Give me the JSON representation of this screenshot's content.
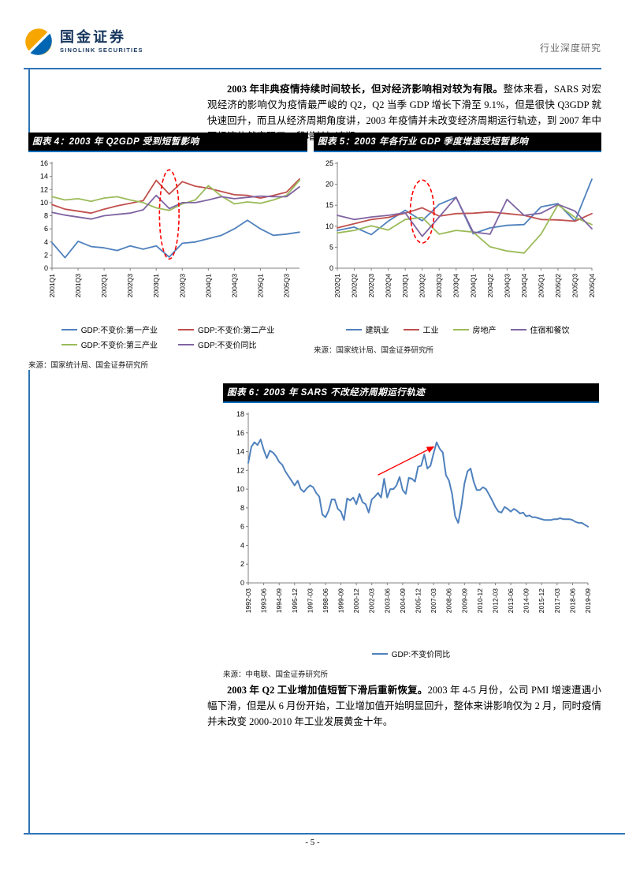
{
  "page": {
    "brand": {
      "name": "国金证券",
      "subtitle": "SINOLINK SECURITIES"
    },
    "header_right": "行业深度研究",
    "page_number": "- 5 -",
    "accent_blue": "#2E74B5",
    "title_bar_blue": "#0070C0",
    "logo_orange": "#F7A600",
    "logo_blue": "#0066B3"
  },
  "paragraph1": {
    "bold": "2003 年非典疫情持续时间较长，但对经济影响相对较为有限。",
    "text": "整体来看，SARS 对宏观经济的影响仅为疫情最严峻的 Q2，Q2 当季 GDP 增长下滑至 9.1%，但是很快 Q3GDP 就快速回升，而且从经济周期角度讲，2003 年疫情并未改变经济周期运行轨迹，到 2007 年中国经济依然实现了一段增长加速期。"
  },
  "paragraph2": {
    "bold": "2003 年 Q2 工业增加值短暂下滑后重新恢复。",
    "text": "2003 年 4-5 月份，公司 PMI 增速遭遇小幅下滑，但是从 6 月份开始，工业增加值开始明显回升，整体来讲影响仅为 2 月，同时疫情并未改变 2000-2010 年工业发展黄金十年。"
  },
  "chart_data": [
    {
      "id": "figure-4",
      "type": "line",
      "title": "图表 4：2003 年 Q2GDP 受到短暂影响",
      "source": "来源：国家统计局、国金证券研究所",
      "ylim": [
        0,
        16
      ],
      "ytick": 2,
      "grid": false,
      "legend_position": "bottom",
      "categories": [
        "2001Q1",
        "2001Q2",
        "2001Q3",
        "2001Q4",
        "2002Q1",
        "2002Q2",
        "2002Q3",
        "2002Q4",
        "2003Q1",
        "2003Q2",
        "2003Q3",
        "2003Q4",
        "2004Q1",
        "2004Q2",
        "2004Q3",
        "2004Q4",
        "2005Q1",
        "2005Q2",
        "2005Q3",
        "2005Q4"
      ],
      "series": [
        {
          "name": "GDP:不变价:第一产业",
          "color": "#4F81BD",
          "values": [
            3.9,
            1.6,
            4.1,
            3.3,
            3.1,
            2.7,
            3.4,
            2.9,
            3.4,
            1.7,
            3.8,
            4.0,
            4.5,
            5.0,
            6.0,
            7.3,
            6.0,
            5.0,
            5.2,
            5.5
          ]
        },
        {
          "name": "GDP:不变价:第二产业",
          "color": "#C0504D",
          "values": [
            9.7,
            9.0,
            8.7,
            8.4,
            9.0,
            9.5,
            9.9,
            10.3,
            13.4,
            11.3,
            13.2,
            12.5,
            12.2,
            11.7,
            11.2,
            11.1,
            10.7,
            11.1,
            11.6,
            13.6
          ]
        },
        {
          "name": "GDP:不变价:第三产业",
          "color": "#9BBB59",
          "values": [
            10.9,
            10.4,
            10.6,
            10.2,
            10.7,
            10.9,
            10.4,
            10.0,
            9.2,
            8.8,
            9.8,
            10.4,
            12.6,
            11.0,
            9.8,
            10.1,
            9.9,
            10.4,
            11.1,
            13.4
          ]
        },
        {
          "name": "GDP:不变价同比",
          "color": "#8064A2",
          "values": [
            8.5,
            8.1,
            7.8,
            7.5,
            8.0,
            8.2,
            8.4,
            8.9,
            11.1,
            9.1,
            10.0,
            10.0,
            10.4,
            10.9,
            10.6,
            10.8,
            11.0,
            10.9,
            10.9,
            12.4
          ]
        }
      ],
      "annotation": {
        "type": "ellipse",
        "x_index": 9,
        "y_center": 8.2,
        "rx_index": 0.75,
        "ry_value": 6.8,
        "color": "#FF0000"
      }
    },
    {
      "id": "figure-5",
      "type": "line",
      "title": "图表 5：2003 年各行业 GDP 季度增速受短暂影响",
      "source": "来源：国家统计局、国金证券研究所",
      "ylim": [
        0,
        25
      ],
      "ytick": 5,
      "grid": false,
      "legend_position": "bottom",
      "categories": [
        "2002Q1",
        "2002Q2",
        "2002Q3",
        "2002Q4",
        "2003Q1",
        "2003Q2",
        "2003Q3",
        "2003Q4",
        "2004Q1",
        "2004Q2",
        "2004Q3",
        "2004Q4",
        "2005Q1",
        "2005Q2",
        "2005Q3",
        "2005Q4"
      ],
      "series": [
        {
          "name": "建筑业",
          "color": "#4F81BD",
          "values": [
            9.0,
            9.8,
            8.0,
            11.2,
            13.8,
            11.3,
            15.2,
            16.9,
            8.2,
            9.6,
            10.2,
            10.4,
            14.6,
            15.4,
            11.2,
            21.2
          ]
        },
        {
          "name": "工业",
          "color": "#C0504D",
          "values": [
            9.6,
            10.6,
            11.6,
            12.1,
            13.1,
            14.4,
            12.4,
            13.0,
            13.1,
            13.4,
            13.0,
            12.6,
            11.6,
            11.5,
            11.2,
            13.0
          ]
        },
        {
          "name": "房地产",
          "color": "#9BBB59",
          "values": [
            8.4,
            9.0,
            10.1,
            9.1,
            11.6,
            12.1,
            8.1,
            9.0,
            8.6,
            5.1,
            4.1,
            3.6,
            8.1,
            15.1,
            12.1,
            10.4
          ]
        },
        {
          "name": "住宿和餐饮",
          "color": "#8064A2",
          "values": [
            12.6,
            11.6,
            12.2,
            12.6,
            13.2,
            7.6,
            12.2,
            16.9,
            8.6,
            8.1,
            16.4,
            12.6,
            13.1,
            15.2,
            13.6,
            9.4
          ]
        }
      ],
      "annotation": {
        "type": "ellipse",
        "x_index": 5,
        "y_center": 13.5,
        "rx_index": 0.7,
        "ry_value": 7.5,
        "color": "#FF0000"
      }
    },
    {
      "id": "figure-6",
      "type": "line",
      "title": "图表 6：2003 年 SARS 不改经济周期运行轨迹",
      "source": "来源：中电联、国金证券研究所",
      "ylim": [
        0,
        18
      ],
      "ytick": 2,
      "grid": false,
      "legend_position": "bottom",
      "categories": [
        "1992-03",
        "1992-06",
        "1992-09",
        "1992-12",
        "1993-03",
        "1993-06",
        "1993-09",
        "1993-12",
        "1994-03",
        "1994-06",
        "1994-09",
        "1994-12",
        "1995-03",
        "1995-06",
        "1995-09",
        "1995-12",
        "1996-03",
        "1996-06",
        "1996-09",
        "1996-12",
        "1997-03",
        "1997-06",
        "1997-09",
        "1997-12",
        "1998-03",
        "1998-06",
        "1998-09",
        "1998-12",
        "1999-03",
        "1999-06",
        "1999-09",
        "1999-12",
        "2000-03",
        "2000-06",
        "2000-09",
        "2000-12",
        "2001-03",
        "2001-06",
        "2001-09",
        "2001-12",
        "2002-03",
        "2002-06",
        "2002-09",
        "2002-12",
        "2003-03",
        "2003-06",
        "2003-09",
        "2003-12",
        "2004-03",
        "2004-06",
        "2004-09",
        "2004-12",
        "2005-03",
        "2005-06",
        "2005-09",
        "2005-12",
        "2006-03",
        "2006-06",
        "2006-09",
        "2006-12",
        "2007-03",
        "2007-06",
        "2007-09",
        "2007-12",
        "2008-03",
        "2008-06",
        "2008-09",
        "2008-12",
        "2009-03",
        "2009-06",
        "2009-09",
        "2009-12",
        "2010-03",
        "2010-06",
        "2010-09",
        "2010-12",
        "2011-03",
        "2011-06",
        "2011-09",
        "2011-12",
        "2012-03",
        "2012-06",
        "2012-09",
        "2012-12",
        "2013-03",
        "2013-06",
        "2013-09",
        "2013-12",
        "2014-03",
        "2014-06",
        "2014-09",
        "2014-12",
        "2015-03",
        "2015-06",
        "2015-09",
        "2015-12",
        "2016-03",
        "2016-06",
        "2016-09",
        "2016-12",
        "2017-03",
        "2017-06",
        "2017-09",
        "2017-12",
        "2018-03",
        "2018-06",
        "2018-09",
        "2018-12",
        "2019-03",
        "2019-06",
        "2019-09"
      ],
      "series": [
        {
          "name": "GDP:不变价同比",
          "color": "#4F81BD",
          "values": [
            12.8,
            14.5,
            15.0,
            14.7,
            15.3,
            14.2,
            13.3,
            14.1,
            13.9,
            13.5,
            12.9,
            12.6,
            11.9,
            11.4,
            10.9,
            10.4,
            10.9,
            10.0,
            9.7,
            10.1,
            10.4,
            10.2,
            9.6,
            9.2,
            7.3,
            7.0,
            7.7,
            8.9,
            8.9,
            7.9,
            7.6,
            6.7,
            9.0,
            8.8,
            9.1,
            8.4,
            9.5,
            8.6,
            8.4,
            7.5,
            8.9,
            9.2,
            9.6,
            9.1,
            11.1,
            9.1,
            10.0,
            10.0,
            10.4,
            11.3,
            9.9,
            9.5,
            11.2,
            11.1,
            10.8,
            12.4,
            12.5,
            13.7,
            12.2,
            12.5,
            13.8,
            15.0,
            14.3,
            13.9,
            11.5,
            10.9,
            9.5,
            7.1,
            6.4,
            8.2,
            10.6,
            11.9,
            12.2,
            10.8,
            9.9,
            9.9,
            10.2,
            10.0,
            9.4,
            8.8,
            8.1,
            7.6,
            7.5,
            8.1,
            7.9,
            7.6,
            7.9,
            7.7,
            7.4,
            7.5,
            7.1,
            7.2,
            7.0,
            7.0,
            6.9,
            6.8,
            6.7,
            6.7,
            6.7,
            6.8,
            6.8,
            6.9,
            6.8,
            6.8,
            6.8,
            6.7,
            6.5,
            6.4,
            6.4,
            6.2,
            6.0
          ]
        }
      ],
      "annotation": {
        "type": "arrow",
        "from": {
          "x_index": 42,
          "y": 11.5
        },
        "to": {
          "x_index": 60,
          "y": 14.5
        },
        "color": "#FF0000"
      }
    }
  ]
}
